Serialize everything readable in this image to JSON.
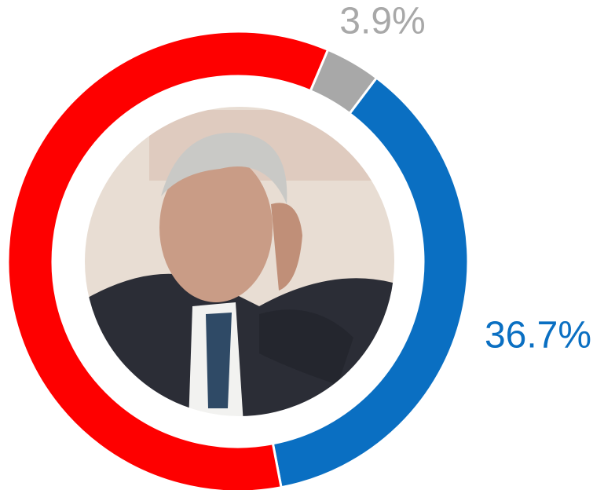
{
  "chart_data": {
    "type": "pie",
    "donut": true,
    "values": [
      3.9,
      36.7,
      59.4
    ],
    "value_labels": [
      "3.9%",
      "36.7%",
      null
    ],
    "colors": [
      "#a8a8a8",
      "#0a6fc2",
      "#fe0000"
    ]
  }
}
